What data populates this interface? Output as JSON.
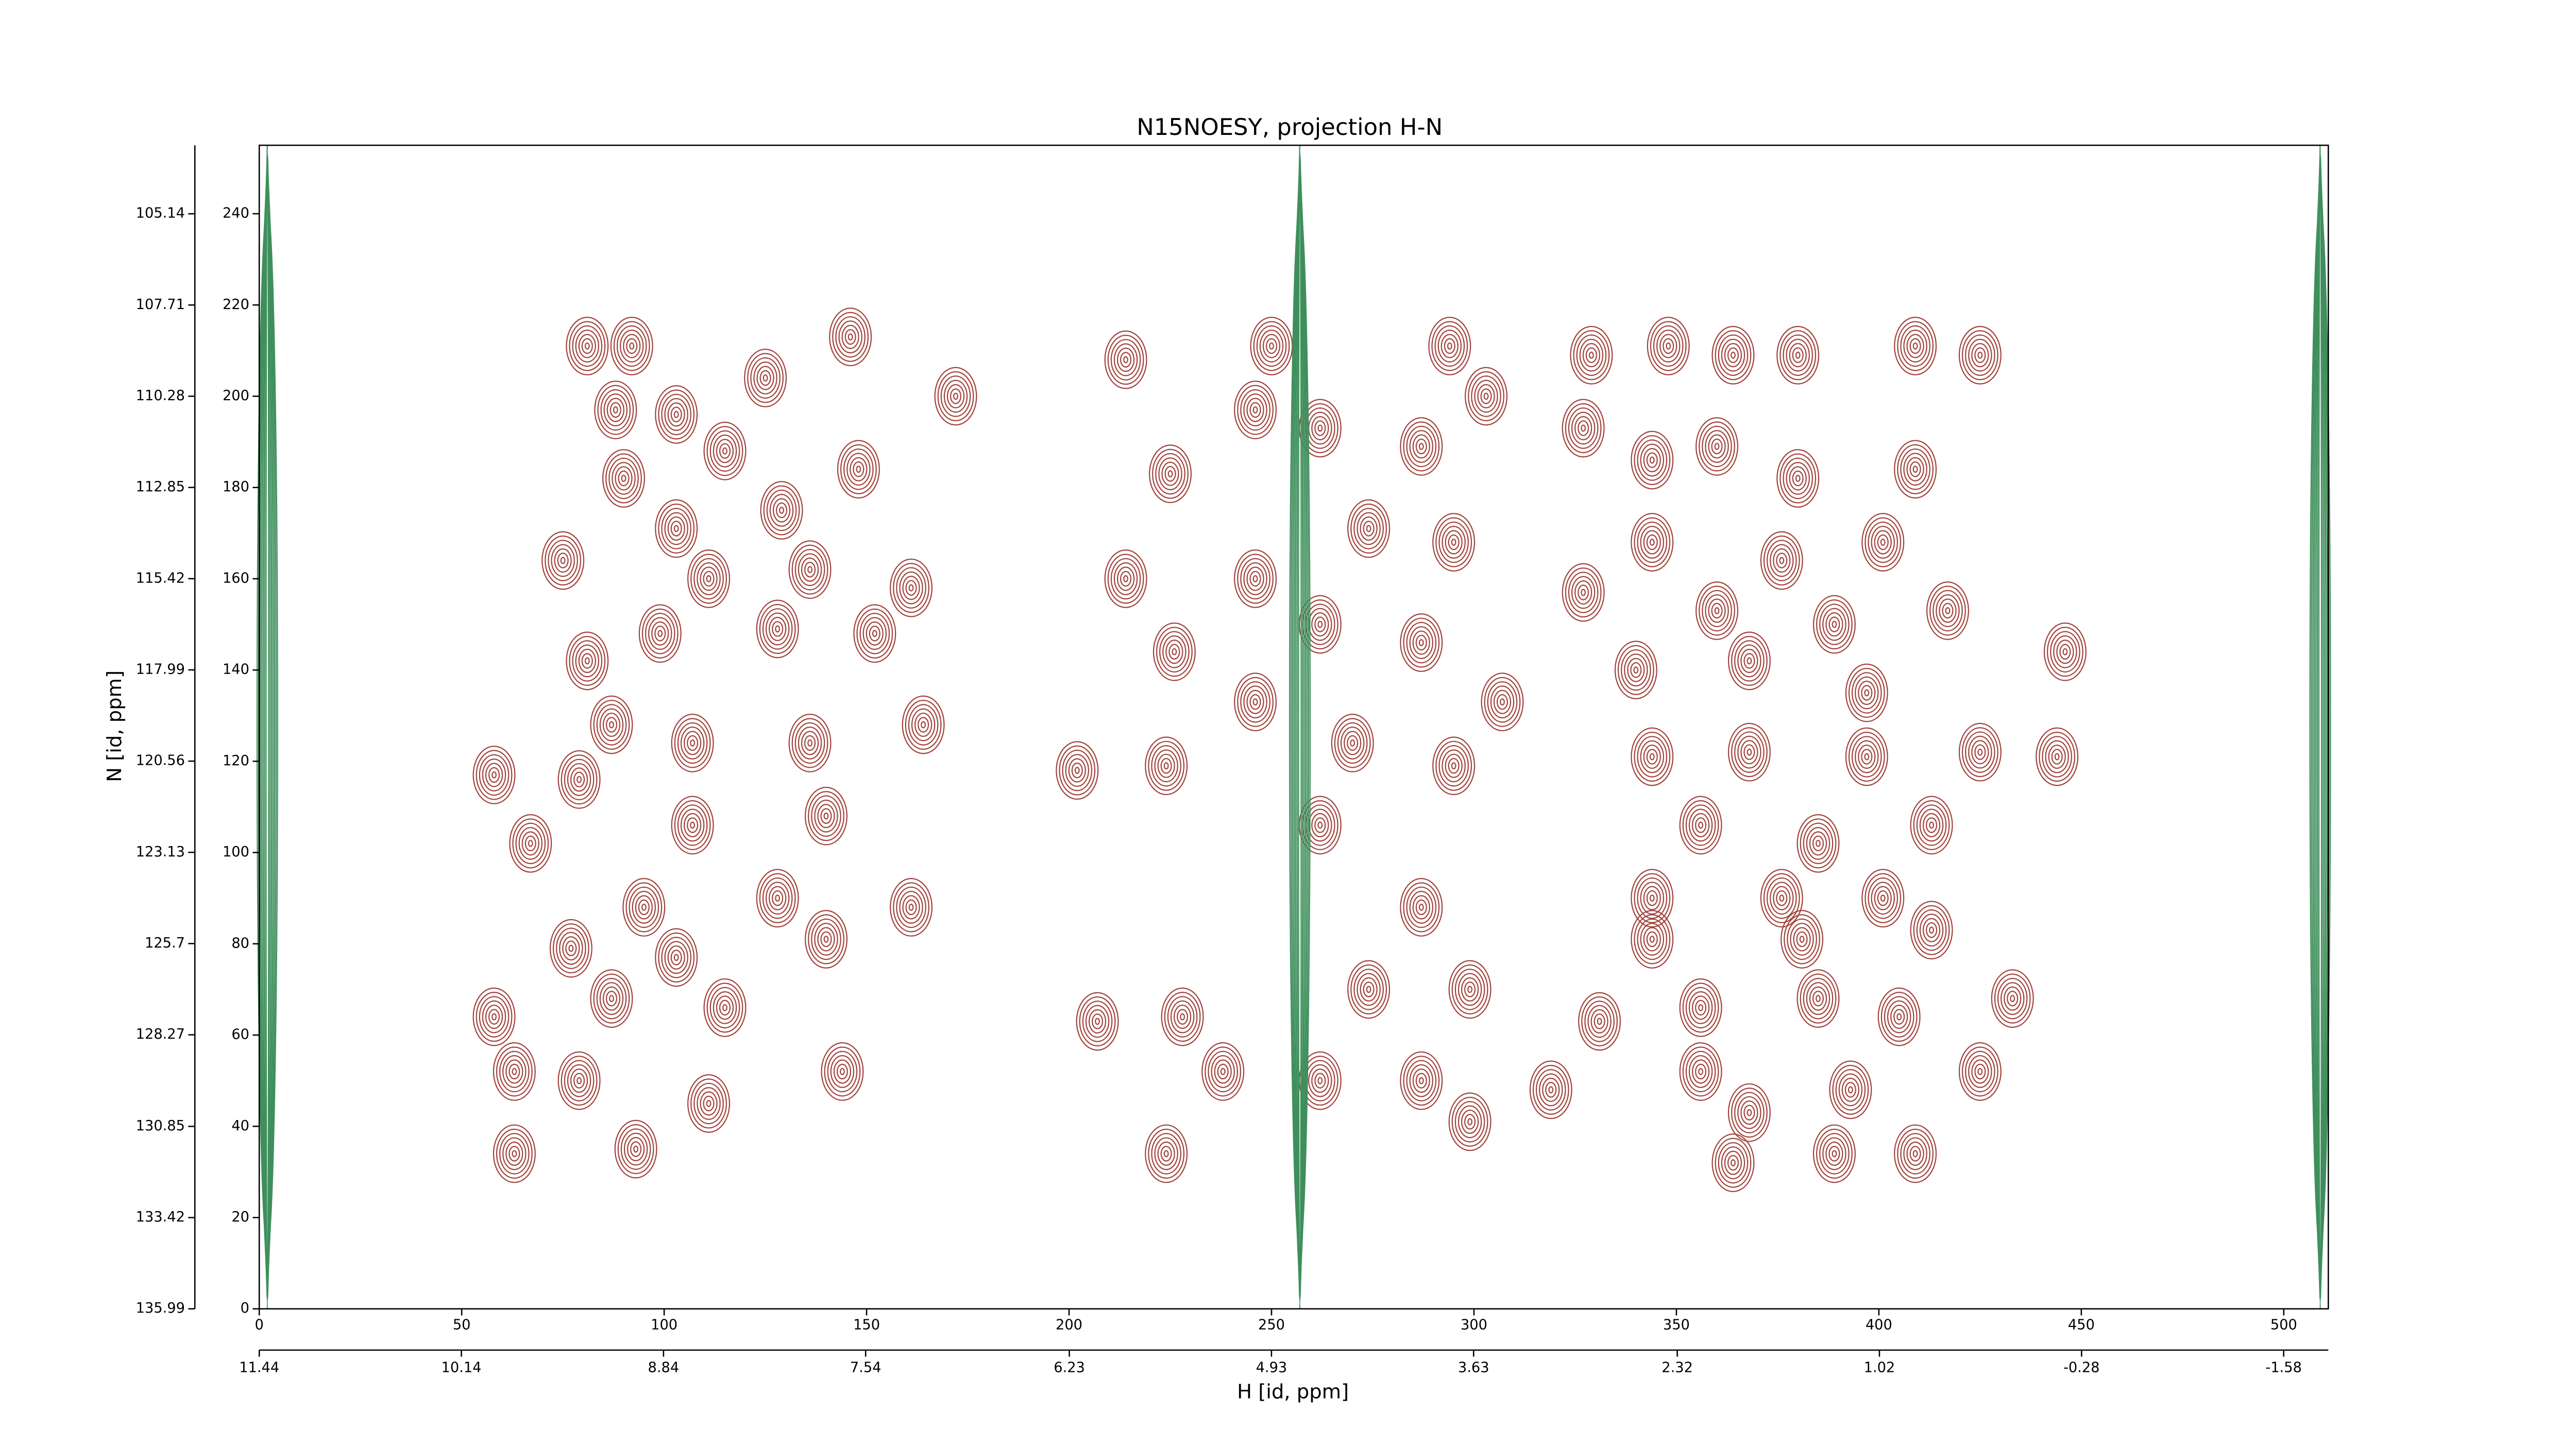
{
  "chart_data": {
    "type": "contour",
    "title": "N15NOESY, projection H-N",
    "xlabel": "H [id, ppm]",
    "ylabel": "N [id, ppm]",
    "xlim": [
      0,
      511
    ],
    "ylim": [
      0,
      255
    ],
    "xticks": [
      0,
      50,
      100,
      150,
      200,
      250,
      300,
      350,
      400,
      450,
      500
    ],
    "yticks": [
      0,
      20,
      40,
      60,
      80,
      100,
      120,
      140,
      160,
      180,
      200,
      220,
      240
    ],
    "x2lim": [
      11.44,
      -1.867
    ],
    "x2ticks": [
      11.44,
      10.14,
      8.84,
      7.54,
      6.23,
      4.93,
      3.63,
      2.32,
      1.02,
      -0.28,
      -1.58
    ],
    "y2lim": [
      135.99,
      103.21
    ],
    "y2ticks": [
      135.99,
      133.42,
      130.85,
      128.27,
      125.7,
      123.13,
      120.56,
      117.99,
      115.42,
      112.85,
      110.28,
      107.71,
      105.14
    ],
    "levels": 7,
    "series": [
      {
        "color": "#a2453e",
        "x": [
          81,
          92,
          125,
          146,
          88,
          103,
          172,
          90,
          115,
          148,
          103,
          129,
          75,
          111,
          136,
          161,
          81,
          99,
          128,
          152,
          58,
          87,
          107,
          136,
          164,
          79,
          107,
          140,
          67,
          95,
          128,
          161,
          77,
          103,
          140,
          58,
          87,
          115,
          63,
          79,
          111,
          144,
          63,
          93,
          214,
          202,
          224,
          226,
          214,
          225,
          207,
          228,
          224,
          250,
          246,
          294,
          303,
          262,
          287,
          274,
          295,
          246,
          262,
          287,
          307,
          246,
          270,
          295,
          262,
          287,
          274,
          299,
          238,
          262,
          287,
          299,
          319,
          329,
          348,
          364,
          380,
          409,
          425,
          327,
          344,
          360,
          380,
          409,
          344,
          376,
          401,
          327,
          360,
          389,
          417,
          340,
          368,
          397,
          446,
          344,
          368,
          397,
          425,
          444,
          356,
          385,
          413,
          344,
          376,
          401,
          344,
          381,
          413,
          331,
          356,
          385,
          405,
          433,
          356,
          368,
          393,
          425,
          364,
          389,
          409
        ],
        "y": [
          211,
          211,
          204,
          213,
          197,
          196,
          200,
          182,
          188,
          184,
          171,
          175,
          164,
          160,
          162,
          158,
          142,
          148,
          149,
          148,
          117,
          128,
          124,
          124,
          128,
          116,
          106,
          108,
          102,
          88,
          90,
          88,
          79,
          77,
          81,
          64,
          68,
          66,
          52,
          50,
          45,
          52,
          34,
          35,
          208,
          118,
          119,
          144,
          160,
          183,
          63,
          64,
          34,
          211,
          197,
          211,
          200,
          193,
          189,
          171,
          168,
          160,
          150,
          146,
          133,
          133,
          124,
          119,
          106,
          88,
          70,
          70,
          52,
          50,
          50,
          41,
          48,
          209,
          211,
          209,
          209,
          211,
          209,
          193,
          186,
          189,
          182,
          184,
          168,
          164,
          168,
          157,
          153,
          150,
          153,
          140,
          142,
          135,
          144,
          121,
          122,
          121,
          122,
          121,
          106,
          102,
          106,
          90,
          90,
          90,
          81,
          81,
          83,
          63,
          66,
          68,
          64,
          68,
          52,
          43,
          48,
          52,
          32,
          34,
          34
        ]
      },
      {
        "color": "#3f8f5c",
        "ridges": [
          2,
          257,
          509
        ]
      }
    ]
  }
}
